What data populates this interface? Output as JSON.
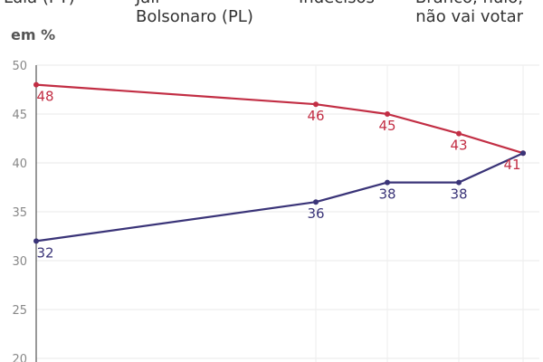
{
  "legend": [
    {
      "label": "Lula (PT)",
      "color": "#c22e44"
    },
    {
      "label": "Jair\nBolsonaro (PL)",
      "color": "#3a3478"
    },
    {
      "label": "Indecisos",
      "color": "#999999"
    },
    {
      "label": "Branco, nulo,\nnão vai votar",
      "color": "#999999"
    }
  ],
  "chart_data": {
    "type": "line",
    "ylabel": "em %",
    "ylim": [
      20,
      50
    ],
    "yticks": [
      20,
      25,
      30,
      35,
      40,
      45,
      50
    ],
    "x": [
      0,
      1,
      2,
      3,
      4
    ],
    "grid": true,
    "series": [
      {
        "name": "Lula (PT)",
        "color": "#c22e44",
        "values": [
          48,
          46,
          45,
          43,
          41
        ]
      },
      {
        "name": "Jair Bolsonaro (PL)",
        "color": "#3a3478",
        "values": [
          32,
          36,
          38,
          38,
          41
        ]
      }
    ]
  }
}
